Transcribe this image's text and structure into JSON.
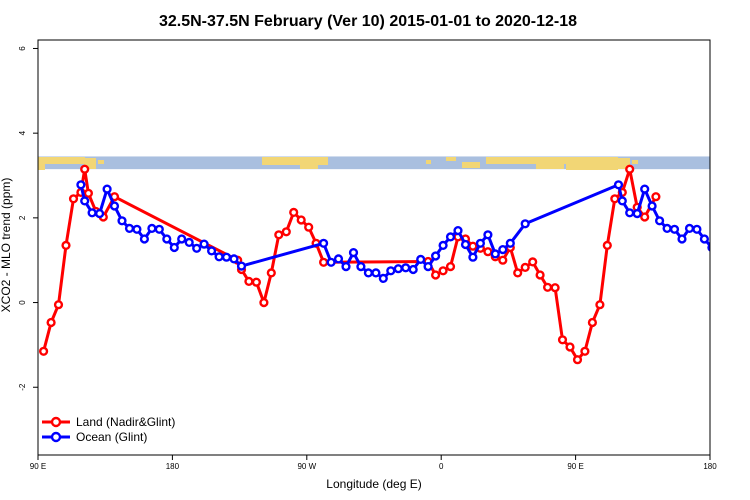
{
  "chart_data": {
    "type": "line",
    "title": "32.5N-37.5N February (Ver 10)   2015-01-01 to 2020-12-18",
    "xlabel": "Longitude (deg E)",
    "ylabel": "XCO2 - MLO trend (ppm)",
    "xlim": [
      90,
      540
    ],
    "ylim": [
      -3.6,
      6.2
    ],
    "x_ticks": [
      {
        "value": 90,
        "label": "90 E"
      },
      {
        "value": 180,
        "label": "180"
      },
      {
        "value": 270,
        "label": "90 W"
      },
      {
        "value": 360,
        "label": "0"
      },
      {
        "value": 450,
        "label": "90 E"
      },
      {
        "value": 540,
        "label": "180"
      }
    ],
    "y_ticks": [
      {
        "value": -2,
        "label": "-2"
      },
      {
        "value": 0,
        "label": "0"
      },
      {
        "value": 2,
        "label": "2"
      },
      {
        "value": 4,
        "label": "4"
      },
      {
        "value": 6,
        "label": "6"
      }
    ],
    "land_band": {
      "ymin": 3.15,
      "ymax": 3.45,
      "ocean_color": "#a9bfdf",
      "land_color": "#f2d675"
    },
    "series": [
      {
        "name": "Land (Nadir&Glint)",
        "color": "#ff0000",
        "x": [
          93.75,
          98.75,
          103.75,
          108.75,
          113.75,
          118.75,
          121.25,
          123.75,
          128.75,
          133.75,
          141.25,
          223.75,
          226.25,
          231.25,
          236.25,
          241.25,
          246.25,
          251.25,
          256.25,
          261.25,
          266.25,
          271.25,
          276.25,
          281.25,
          351.25,
          356.25,
          361.25,
          366.25,
          371.25,
          376.25,
          381.25,
          386.25,
          391.25,
          396.25,
          401.25,
          406.25,
          411.25,
          416.25,
          421.25,
          426.25,
          431.25,
          436.25,
          441.25,
          446.25,
          451.25,
          456.25,
          461.25,
          466.25,
          471.25,
          476.25,
          481.25,
          486.25,
          491.25,
          496.25,
          503.75
        ],
        "y": [
          -1.15,
          -0.47,
          -0.05,
          1.35,
          2.45,
          2.6,
          3.15,
          2.58,
          2.15,
          2.02,
          2.5,
          1.0,
          0.78,
          0.5,
          0.48,
          0.0,
          0.7,
          1.6,
          1.67,
          2.13,
          1.95,
          1.78,
          1.4,
          0.95,
          0.97,
          0.65,
          0.75,
          0.85,
          1.55,
          1.5,
          1.33,
          1.28,
          1.2,
          1.08,
          1.0,
          1.3,
          0.7,
          0.83,
          0.96,
          0.65,
          0.36,
          0.35,
          -0.88,
          -1.05,
          -1.35,
          -1.15,
          -0.47,
          -0.05,
          1.35,
          2.45,
          2.6,
          3.15,
          2.25,
          2.02,
          2.5
        ]
      },
      {
        "name": "Ocean (Glint)",
        "color": "#0000ff",
        "x": [
          118.75,
          121.25,
          126.25,
          131.25,
          136.25,
          141.25,
          146.25,
          151.25,
          156.25,
          161.25,
          166.25,
          171.25,
          176.25,
          181.25,
          186.25,
          191.25,
          196.25,
          201.25,
          206.25,
          211.25,
          216.25,
          221.25,
          226.25,
          281.25,
          286.25,
          291.25,
          296.25,
          301.25,
          306.25,
          311.25,
          316.25,
          321.25,
          326.25,
          331.25,
          336.25,
          341.25,
          346.25,
          351.25,
          356.25,
          361.25,
          366.25,
          371.25,
          376.25,
          381.25,
          386.25,
          391.25,
          396.25,
          401.25,
          406.25,
          416.25,
          478.75,
          481.25,
          486.25,
          491.25,
          496.25,
          501.25,
          506.25,
          511.25,
          516.25,
          521.25,
          526.25,
          531.25,
          536.25,
          541.25
        ],
        "y": [
          2.78,
          2.4,
          2.12,
          2.1,
          2.68,
          2.28,
          1.93,
          1.75,
          1.73,
          1.5,
          1.75,
          1.73,
          1.5,
          1.3,
          1.5,
          1.42,
          1.28,
          1.38,
          1.22,
          1.08,
          1.07,
          1.03,
          0.86,
          1.4,
          0.95,
          1.03,
          0.85,
          1.18,
          0.85,
          0.7,
          0.7,
          0.57,
          0.75,
          0.8,
          0.82,
          0.78,
          1.02,
          0.85,
          1.1,
          1.35,
          1.55,
          1.7,
          1.37,
          1.07,
          1.4,
          1.6,
          1.15,
          1.25,
          1.4,
          1.86,
          2.78,
          2.4,
          2.12,
          2.1,
          2.68,
          2.28,
          1.93,
          1.75,
          1.73,
          1.5,
          1.75,
          1.73,
          1.5,
          1.3
        ]
      }
    ],
    "legend": {
      "position": "bottom-left"
    },
    "grid": false
  }
}
